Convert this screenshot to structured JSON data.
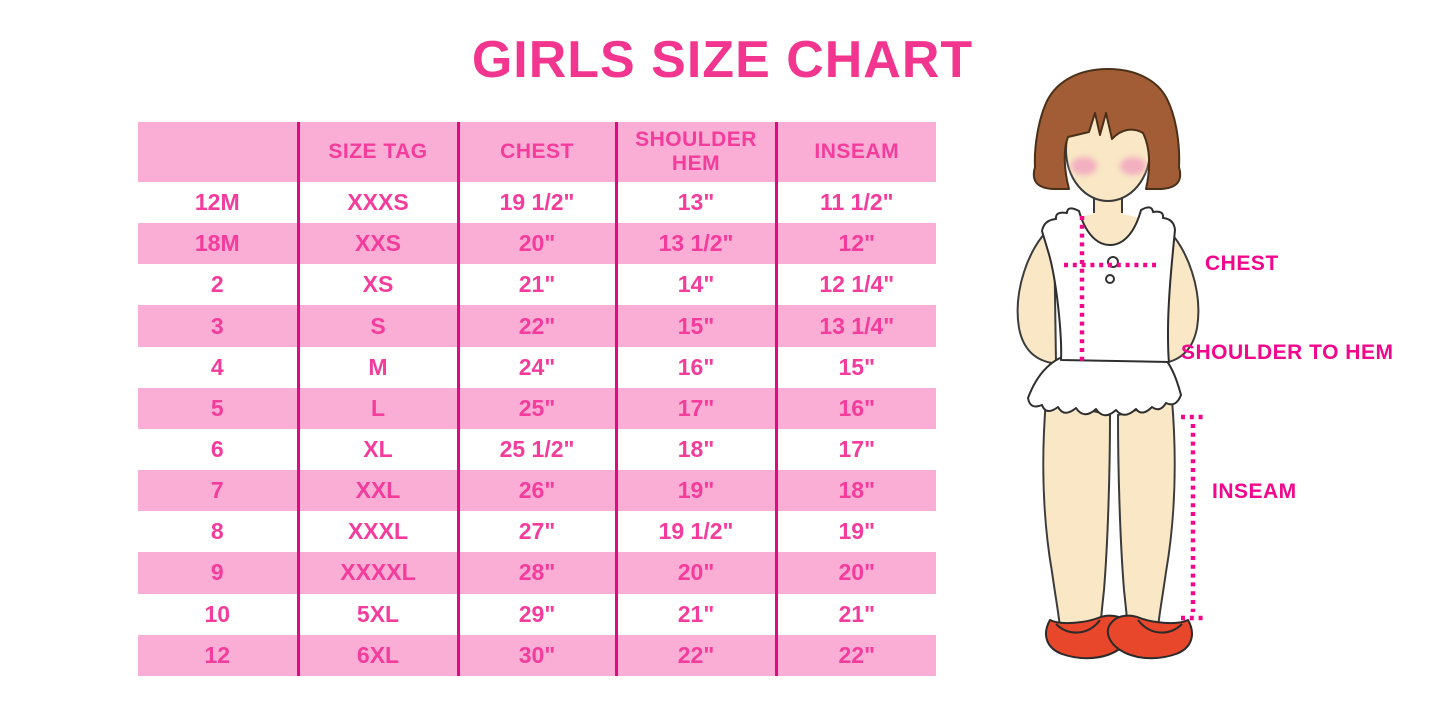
{
  "title": "GIRLS SIZE CHART",
  "chart_data": {
    "type": "table",
    "title": "GIRLS SIZE CHART",
    "columns": [
      "",
      "SIZE TAG",
      "CHEST",
      "SHOULDER HEM",
      "INSEAM"
    ],
    "rows": [
      [
        "12M",
        "XXXS",
        "19 1/2\"",
        "13\"",
        "11 1/2\""
      ],
      [
        "18M",
        "XXS",
        "20\"",
        "13 1/2\"",
        "12\""
      ],
      [
        "2",
        "XS",
        "21\"",
        "14\"",
        "12 1/4\""
      ],
      [
        "3",
        "S",
        "22\"",
        "15\"",
        "13 1/4\""
      ],
      [
        "4",
        "M",
        "24\"",
        "16\"",
        "15\""
      ],
      [
        "5",
        "L",
        "25\"",
        "17\"",
        "16\""
      ],
      [
        "6",
        "XL",
        "25 1/2\"",
        "18\"",
        "17\""
      ],
      [
        "7",
        "XXL",
        "26\"",
        "19\"",
        "18\""
      ],
      [
        "8",
        "XXXL",
        "27\"",
        "19 1/2\"",
        "19\""
      ],
      [
        "9",
        "XXXXL",
        "28\"",
        "20\"",
        "20\""
      ],
      [
        "10",
        "5XL",
        "29\"",
        "21\"",
        "21\""
      ],
      [
        "12",
        "6XL",
        "30\"",
        "22\"",
        "22\""
      ]
    ]
  },
  "diagram": {
    "chest_label": "CHEST",
    "shoulder_to_hem_label": "SHOULDER TO HEM",
    "inseam_label": "INSEAM"
  },
  "colors": {
    "title_pink": "#F2358F",
    "row_pink": "#FAAED6",
    "table_text_pink": "#F43C9C",
    "divider_magenta": "#E00A84",
    "label_pink": "#F2068C",
    "dotted_line_pink": "#F2068C",
    "hair_brown": "#A25D36",
    "skin": "#F9E7C5",
    "blush": "#F2AFC0",
    "shoe_red": "#E9472B",
    "background": "#FFFFFF"
  }
}
